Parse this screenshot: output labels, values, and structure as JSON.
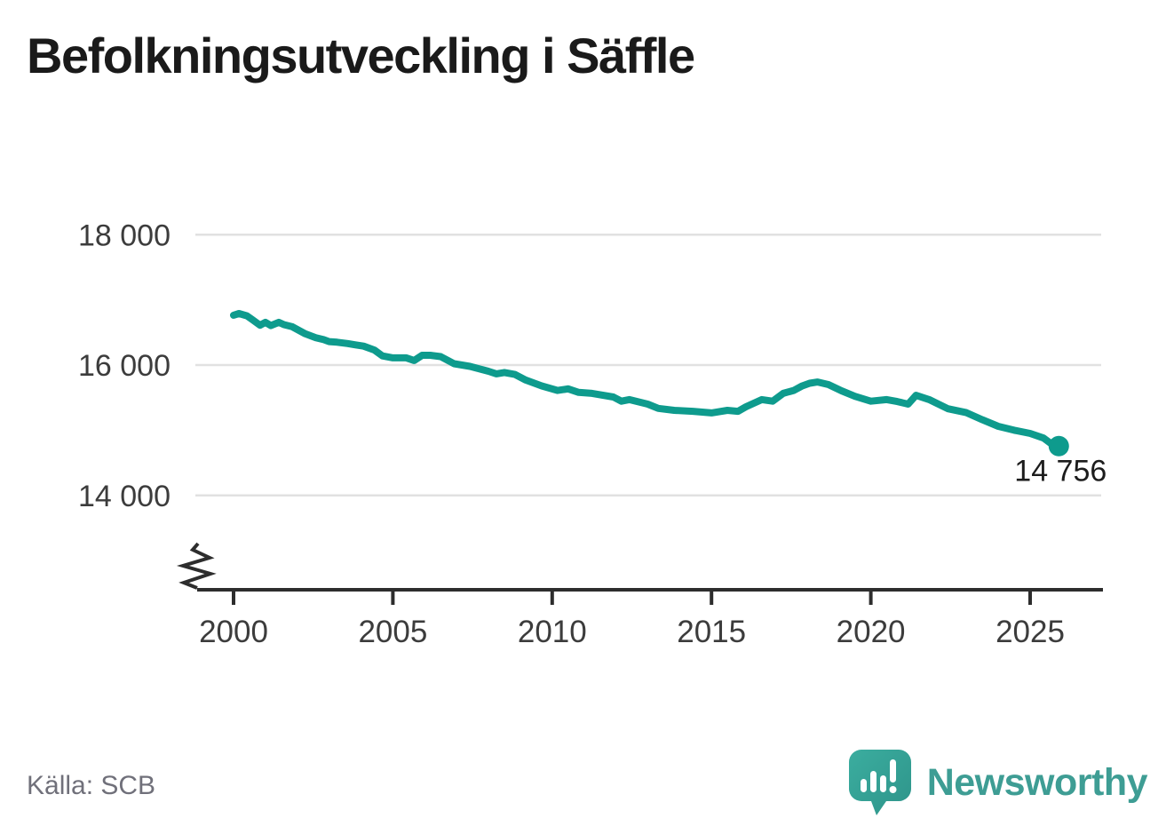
{
  "header": {
    "title": "Befolkningsutveckling i Säffle"
  },
  "chart_data": {
    "type": "line",
    "title": "Befolkningsutveckling i Säffle",
    "xlabel": "",
    "ylabel": "",
    "line_color": "#0E9B8D",
    "grid_color": "#E1E1E1",
    "axis_color": "#2D2D2D",
    "tick_label_color": "#3C3C3C",
    "legend_position": "none",
    "grid": "horizontal-only",
    "axis_break_on_y": true,
    "xlim": [
      1998.9,
      2027.3
    ],
    "ylim_displayed": [
      14000,
      18000
    ],
    "x_ticks": [
      2000,
      2005,
      2010,
      2015,
      2020,
      2025
    ],
    "y_ticks": [
      {
        "value": 18000,
        "label": "18 000"
      },
      {
        "value": 16000,
        "label": "16 000"
      },
      {
        "value": 14000,
        "label": "14 000"
      }
    ],
    "end_annotation": {
      "label": "14 756",
      "value": 14756
    },
    "series": [
      {
        "name": "Befolkning",
        "x": [
          2000.0,
          2000.17,
          2000.42,
          2000.58,
          2000.83,
          2001.0,
          2001.17,
          2001.42,
          2001.58,
          2001.83,
          2002.25,
          2002.58,
          2002.83,
          2003.0,
          2003.25,
          2003.58,
          2003.83,
          2004.08,
          2004.42,
          2004.67,
          2005.0,
          2005.42,
          2005.67,
          2005.92,
          2006.17,
          2006.5,
          2006.92,
          2007.42,
          2008.0,
          2008.25,
          2008.5,
          2008.83,
          2009.17,
          2009.67,
          2010.17,
          2010.5,
          2010.83,
          2011.25,
          2011.92,
          2012.17,
          2012.42,
          2013.0,
          2013.33,
          2013.83,
          2014.42,
          2015.0,
          2015.5,
          2015.83,
          2016.08,
          2016.58,
          2016.92,
          2017.25,
          2017.58,
          2017.83,
          2018.08,
          2018.33,
          2018.67,
          2019.08,
          2019.5,
          2020.0,
          2020.5,
          2020.83,
          2021.17,
          2021.42,
          2021.83,
          2022.42,
          2023.0,
          2023.5,
          2024.0,
          2024.5,
          2025.0,
          2025.42,
          2025.67,
          2025.9
        ],
        "values": [
          16765,
          16790,
          16755,
          16700,
          16610,
          16655,
          16605,
          16655,
          16620,
          16590,
          16480,
          16420,
          16390,
          16360,
          16350,
          16330,
          16310,
          16290,
          16230,
          16140,
          16110,
          16110,
          16070,
          16150,
          16150,
          16130,
          16020,
          15980,
          15905,
          15865,
          15885,
          15855,
          15770,
          15680,
          15610,
          15635,
          15580,
          15565,
          15510,
          15445,
          15470,
          15400,
          15335,
          15305,
          15290,
          15265,
          15305,
          15290,
          15360,
          15470,
          15445,
          15565,
          15610,
          15675,
          15720,
          15740,
          15700,
          15605,
          15520,
          15445,
          15470,
          15440,
          15400,
          15535,
          15470,
          15330,
          15270,
          15160,
          15060,
          15000,
          14950,
          14880,
          14790,
          14756
        ]
      }
    ]
  },
  "footer": {
    "source_label": "Källa: SCB",
    "logo_text": "Newsworthy",
    "logo_color": "#3E9D94",
    "logo_bubble_color": "#35A89B"
  }
}
